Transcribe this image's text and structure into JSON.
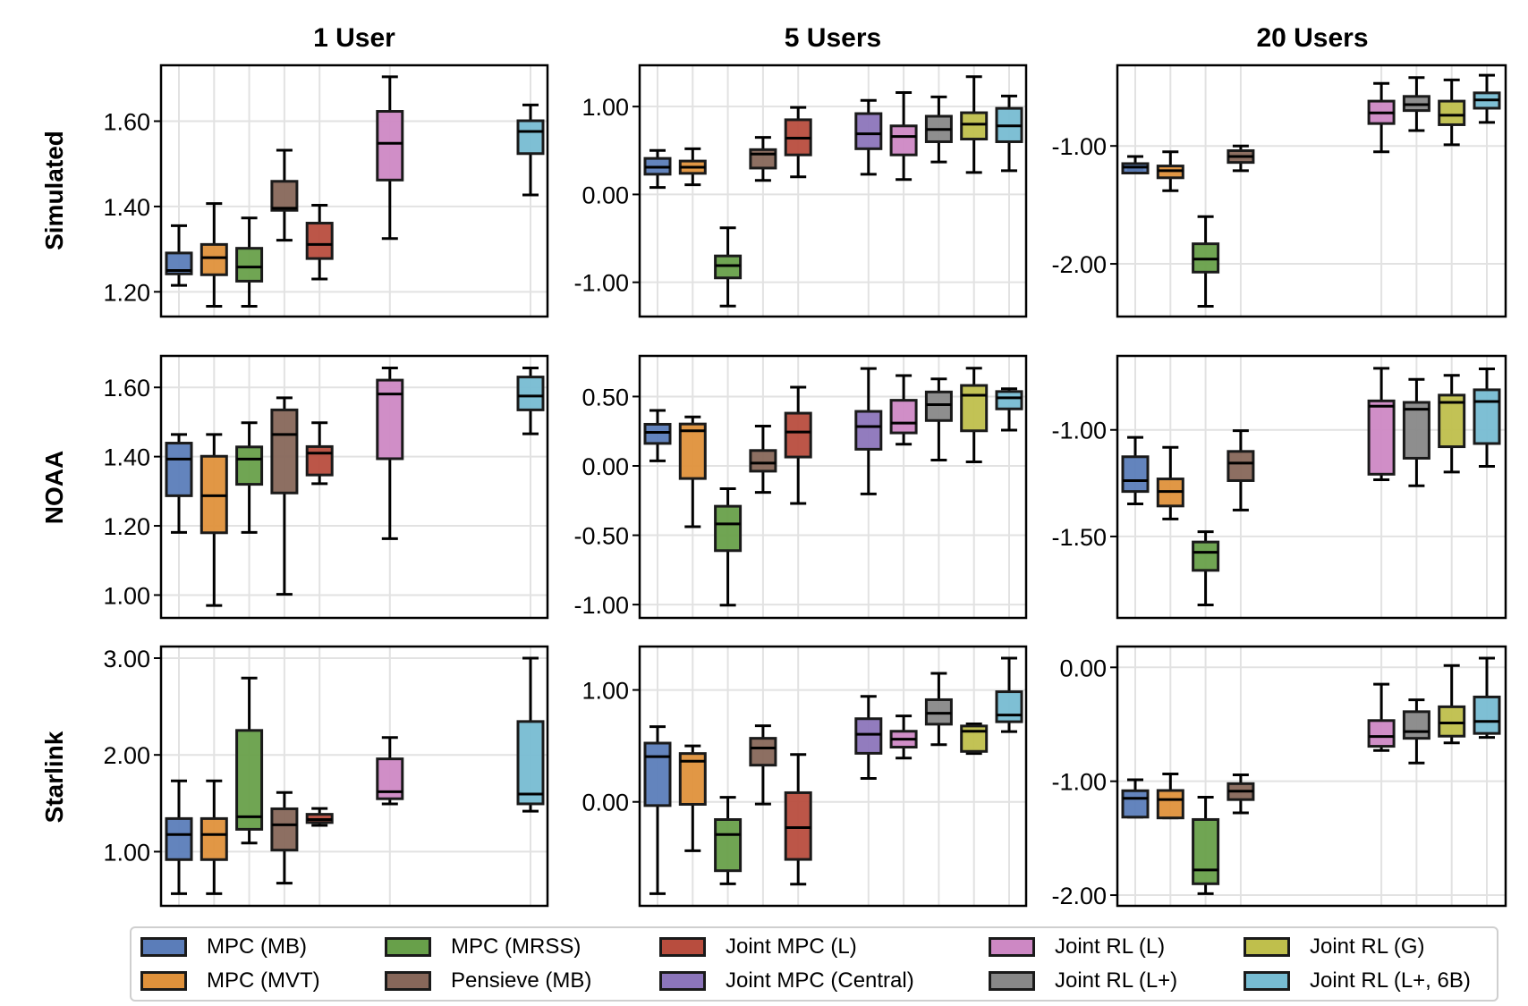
{
  "figure": {
    "column_titles": [
      "1 User",
      "5 Users",
      "20 Users"
    ],
    "row_titles": [
      "Simulated",
      "NOAA",
      "Starlink"
    ]
  },
  "legend": [
    {
      "label": "MPC (MB)",
      "color": "#5b7db9"
    },
    {
      "label": "MPC (MVT)",
      "color": "#df913b"
    },
    {
      "label": "MPC (MRSS)",
      "color": "#68a04a"
    },
    {
      "label": "Pensieve (MB)",
      "color": "#87675a"
    },
    {
      "label": "Joint MPC (L)",
      "color": "#b84d3e"
    },
    {
      "label": "Joint MPC (Central)",
      "color": "#8c75bb"
    },
    {
      "label": "Joint RL (L)",
      "color": "#cd88c4"
    },
    {
      "label": "Joint RL (L+)",
      "color": "#888888"
    },
    {
      "label": "Joint RL (G)",
      "color": "#bfbf4c"
    },
    {
      "label": "Joint RL (L+, 6B)",
      "color": "#77bcd2"
    }
  ],
  "chart_data": [
    {
      "type": "box",
      "row": "Simulated",
      "column": "1 User",
      "ylim": [
        1.142,
        1.731
      ],
      "yticks": [
        1.2,
        1.4,
        1.6
      ],
      "ytick_labels": [
        "1.20",
        "1.40",
        "1.60"
      ],
      "grid": true,
      "slots": 11,
      "boxes": [
        {
          "series": "MPC (MB)",
          "slot": 0,
          "whislo": 1.215,
          "q1": 1.242,
          "med": 1.25,
          "q3": 1.291,
          "whishi": 1.355
        },
        {
          "series": "MPC (MVT)",
          "slot": 1,
          "whislo": 1.166,
          "q1": 1.24,
          "med": 1.28,
          "q3": 1.311,
          "whishi": 1.407
        },
        {
          "series": "MPC (MRSS)",
          "slot": 2,
          "whislo": 1.166,
          "q1": 1.225,
          "med": 1.258,
          "q3": 1.302,
          "whishi": 1.373
        },
        {
          "series": "Pensieve (MB)",
          "slot": 3,
          "whislo": 1.321,
          "q1": 1.391,
          "med": 1.396,
          "q3": 1.459,
          "whishi": 1.532
        },
        {
          "series": "Joint MPC (L)",
          "slot": 4,
          "whislo": 1.23,
          "q1": 1.278,
          "med": 1.311,
          "q3": 1.361,
          "whishi": 1.403
        },
        {
          "series": "Joint RL (L)",
          "slot": 6,
          "whislo": 1.325,
          "q1": 1.462,
          "med": 1.548,
          "q3": 1.623,
          "whishi": 1.704
        },
        {
          "series": "Joint RL (L+, 6B)",
          "slot": 10,
          "whislo": 1.427,
          "q1": 1.524,
          "med": 1.576,
          "q3": 1.601,
          "whishi": 1.638
        }
      ]
    },
    {
      "type": "box",
      "row": "Simulated",
      "column": "5 Users",
      "ylim": [
        -1.39,
        1.47
      ],
      "yticks": [
        -1.0,
        0.0,
        1.0
      ],
      "ytick_labels": [
        "-1.00",
        "0.00",
        "1.00"
      ],
      "grid": true,
      "slots": 11,
      "boxes": [
        {
          "series": "MPC (MB)",
          "slot": 0,
          "whislo": 0.08,
          "q1": 0.23,
          "med": 0.31,
          "q3": 0.41,
          "whishi": 0.5
        },
        {
          "series": "MPC (MVT)",
          "slot": 1,
          "whislo": 0.11,
          "q1": 0.24,
          "med": 0.31,
          "q3": 0.38,
          "whishi": 0.52
        },
        {
          "series": "MPC (MRSS)",
          "slot": 2,
          "whislo": -1.27,
          "q1": -0.95,
          "med": -0.81,
          "q3": -0.7,
          "whishi": -0.38
        },
        {
          "series": "Pensieve (MB)",
          "slot": 3,
          "whislo": 0.16,
          "q1": 0.3,
          "med": 0.46,
          "q3": 0.51,
          "whishi": 0.65
        },
        {
          "series": "Joint MPC (L)",
          "slot": 4,
          "whislo": 0.2,
          "q1": 0.45,
          "med": 0.64,
          "q3": 0.85,
          "whishi": 0.99
        },
        {
          "series": "Joint MPC (Central)",
          "slot": 6,
          "whislo": 0.23,
          "q1": 0.52,
          "med": 0.69,
          "q3": 0.92,
          "whishi": 1.07
        },
        {
          "series": "Joint RL (L)",
          "slot": 7,
          "whislo": 0.17,
          "q1": 0.45,
          "med": 0.66,
          "q3": 0.78,
          "whishi": 1.16
        },
        {
          "series": "Joint RL (L+)",
          "slot": 8,
          "whislo": 0.37,
          "q1": 0.6,
          "med": 0.74,
          "q3": 0.89,
          "whishi": 1.11
        },
        {
          "series": "Joint RL (G)",
          "slot": 9,
          "whislo": 0.25,
          "q1": 0.63,
          "med": 0.8,
          "q3": 0.93,
          "whishi": 1.34
        },
        {
          "series": "Joint RL (L+, 6B)",
          "slot": 10,
          "whislo": 0.27,
          "q1": 0.6,
          "med": 0.78,
          "q3": 0.98,
          "whishi": 1.12
        }
      ]
    },
    {
      "type": "box",
      "row": "Simulated",
      "column": "20 Users",
      "ylim": [
        -2.447,
        -0.316
      ],
      "yticks": [
        -2.0,
        -1.0
      ],
      "ytick_labels": [
        "-2.00",
        "-1.00"
      ],
      "grid": true,
      "slots": 11,
      "boxes": [
        {
          "series": "MPC (MB)",
          "slot": 0,
          "whislo": -1.2,
          "q1": -1.23,
          "med": -1.18,
          "q3": -1.15,
          "whishi": -1.09
        },
        {
          "series": "MPC (MVT)",
          "slot": 1,
          "whislo": -1.38,
          "q1": -1.27,
          "med": -1.21,
          "q3": -1.17,
          "whishi": -1.05
        },
        {
          "series": "MPC (MRSS)",
          "slot": 2,
          "whislo": -2.36,
          "q1": -2.07,
          "med": -1.96,
          "q3": -1.83,
          "whishi": -1.6
        },
        {
          "series": "Pensieve (MB)",
          "slot": 3,
          "whislo": -1.21,
          "q1": -1.14,
          "med": -1.09,
          "q3": -1.04,
          "whishi": -1.0
        },
        {
          "series": "Joint RL (L)",
          "slot": 7,
          "whislo": -1.05,
          "q1": -0.81,
          "med": -0.72,
          "q3": -0.62,
          "whishi": -0.47
        },
        {
          "series": "Joint RL (L+)",
          "slot": 8,
          "whislo": -0.87,
          "q1": -0.7,
          "med": -0.65,
          "q3": -0.58,
          "whishi": -0.42
        },
        {
          "series": "Joint RL (G)",
          "slot": 9,
          "whislo": -0.99,
          "q1": -0.82,
          "med": -0.74,
          "q3": -0.62,
          "whishi": -0.44
        },
        {
          "series": "Joint RL (L+, 6B)",
          "slot": 10,
          "whislo": -0.8,
          "q1": -0.68,
          "med": -0.61,
          "q3": -0.55,
          "whishi": -0.4
        }
      ]
    },
    {
      "type": "box",
      "row": "NOAA",
      "column": "1 User",
      "ylim": [
        0.934,
        1.691
      ],
      "yticks": [
        1.0,
        1.2,
        1.4,
        1.6
      ],
      "ytick_labels": [
        "1.00",
        "1.20",
        "1.40",
        "1.60"
      ],
      "grid": true,
      "slots": 11,
      "boxes": [
        {
          "series": "MPC (MB)",
          "slot": 0,
          "whislo": 1.181,
          "q1": 1.287,
          "med": 1.393,
          "q3": 1.439,
          "whishi": 1.464
        },
        {
          "series": "MPC (MVT)",
          "slot": 1,
          "whislo": 0.97,
          "q1": 1.18,
          "med": 1.287,
          "q3": 1.401,
          "whishi": 1.464
        },
        {
          "series": "MPC (MRSS)",
          "slot": 2,
          "whislo": 1.181,
          "q1": 1.32,
          "med": 1.393,
          "q3": 1.428,
          "whishi": 1.498
        },
        {
          "series": "Pensieve (MB)",
          "slot": 3,
          "whislo": 1.002,
          "q1": 1.295,
          "med": 1.464,
          "q3": 1.535,
          "whishi": 1.57
        },
        {
          "series": "Joint MPC (L)",
          "slot": 4,
          "whislo": 1.322,
          "q1": 1.347,
          "med": 1.41,
          "q3": 1.429,
          "whishi": 1.498
        },
        {
          "series": "Joint RL (L)",
          "slot": 6,
          "whislo": 1.163,
          "q1": 1.394,
          "med": 1.581,
          "q3": 1.621,
          "whishi": 1.656
        },
        {
          "series": "Joint RL (L+, 6B)",
          "slot": 10,
          "whislo": 1.466,
          "q1": 1.535,
          "med": 1.575,
          "q3": 1.63,
          "whishi": 1.656
        }
      ]
    },
    {
      "type": "box",
      "row": "NOAA",
      "column": "5 Users",
      "ylim": [
        -1.096,
        0.793
      ],
      "yticks": [
        -1.0,
        -0.5,
        0.0,
        0.5
      ],
      "ytick_labels": [
        "-1.00",
        "-0.50",
        "0.00",
        "0.50"
      ],
      "grid": true,
      "slots": 11,
      "boxes": [
        {
          "series": "MPC (MB)",
          "slot": 0,
          "whislo": 0.036,
          "q1": 0.162,
          "med": 0.242,
          "q3": 0.3,
          "whishi": 0.4
        },
        {
          "series": "MPC (MVT)",
          "slot": 1,
          "whislo": -0.438,
          "q1": -0.091,
          "med": 0.253,
          "q3": 0.302,
          "whishi": 0.353
        },
        {
          "series": "MPC (MRSS)",
          "slot": 2,
          "whislo": -1.004,
          "q1": -0.611,
          "med": -0.418,
          "q3": -0.291,
          "whishi": -0.164
        },
        {
          "series": "Pensieve (MB)",
          "slot": 3,
          "whislo": -0.191,
          "q1": -0.038,
          "med": 0.02,
          "q3": 0.111,
          "whishi": 0.287
        },
        {
          "series": "Joint MPC (L)",
          "slot": 4,
          "whislo": -0.271,
          "q1": 0.064,
          "med": 0.244,
          "q3": 0.38,
          "whishi": 0.567
        },
        {
          "series": "Joint MPC (Central)",
          "slot": 6,
          "whislo": -0.202,
          "q1": 0.12,
          "med": 0.284,
          "q3": 0.393,
          "whishi": 0.702
        },
        {
          "series": "Joint RL (L)",
          "slot": 7,
          "whislo": 0.156,
          "q1": 0.238,
          "med": 0.309,
          "q3": 0.473,
          "whishi": 0.651
        },
        {
          "series": "Joint RL (L+)",
          "slot": 8,
          "whislo": 0.042,
          "q1": 0.327,
          "med": 0.442,
          "q3": 0.533,
          "whishi": 0.627
        },
        {
          "series": "Joint RL (G)",
          "slot": 9,
          "whislo": 0.029,
          "q1": 0.253,
          "med": 0.509,
          "q3": 0.58,
          "whishi": 0.704
        },
        {
          "series": "Joint RL (L+, 6B)",
          "slot": 10,
          "whislo": 0.258,
          "q1": 0.411,
          "med": 0.491,
          "q3": 0.536,
          "whishi": 0.556
        }
      ]
    },
    {
      "type": "box",
      "row": "NOAA",
      "column": "20 Users",
      "ylim": [
        -1.882,
        -0.653
      ],
      "yticks": [
        -1.5,
        -1.0
      ],
      "ytick_labels": [
        "-1.50",
        "-1.00"
      ],
      "grid": true,
      "slots": 11,
      "boxes": [
        {
          "series": "MPC (MB)",
          "slot": 0,
          "whislo": -1.347,
          "q1": -1.289,
          "med": -1.238,
          "q3": -1.126,
          "whishi": -1.035
        },
        {
          "series": "MPC (MVT)",
          "slot": 1,
          "whislo": -1.418,
          "q1": -1.357,
          "med": -1.289,
          "q3": -1.23,
          "whishi": -1.082
        },
        {
          "series": "MPC (MRSS)",
          "slot": 2,
          "whislo": -1.821,
          "q1": -1.659,
          "med": -1.574,
          "q3": -1.526,
          "whishi": -1.478
        },
        {
          "series": "Pensieve (MB)",
          "slot": 3,
          "whislo": -1.376,
          "q1": -1.238,
          "med": -1.156,
          "q3": -1.101,
          "whishi": -1.004
        },
        {
          "series": "Joint RL (L)",
          "slot": 7,
          "whislo": -1.234,
          "q1": -1.208,
          "med": -0.889,
          "q3": -0.864,
          "whishi": -0.711
        },
        {
          "series": "Joint RL (L+)",
          "slot": 8,
          "whislo": -1.262,
          "q1": -1.133,
          "med": -0.903,
          "q3": -0.871,
          "whishi": -0.763
        },
        {
          "series": "Joint RL (G)",
          "slot": 9,
          "whislo": -1.198,
          "q1": -1.079,
          "med": -0.871,
          "q3": -0.837,
          "whishi": -0.744
        },
        {
          "series": "Joint RL (L+, 6B)",
          "slot": 10,
          "whislo": -1.171,
          "q1": -1.064,
          "med": -0.867,
          "q3": -0.812,
          "whishi": -0.714
        }
      ]
    },
    {
      "type": "box",
      "row": "Starlink",
      "column": "1 User",
      "ylim": [
        0.44,
        3.12
      ],
      "yticks": [
        1.0,
        2.0,
        3.0
      ],
      "ytick_labels": [
        "1.00",
        "2.00",
        "3.00"
      ],
      "grid": true,
      "slots": 11,
      "boxes": [
        {
          "series": "MPC (MB)",
          "slot": 0,
          "whislo": 0.566,
          "q1": 0.918,
          "med": 1.177,
          "q3": 1.342,
          "whishi": 1.731
        },
        {
          "series": "MPC (MVT)",
          "slot": 1,
          "whislo": 0.566,
          "q1": 0.918,
          "med": 1.177,
          "q3": 1.342,
          "whishi": 1.731
        },
        {
          "series": "MPC (MRSS)",
          "slot": 2,
          "whislo": 1.089,
          "q1": 1.231,
          "med": 1.361,
          "q3": 2.253,
          "whishi": 2.794
        },
        {
          "series": "Pensieve (MB)",
          "slot": 3,
          "whislo": 0.674,
          "q1": 1.016,
          "med": 1.278,
          "q3": 1.443,
          "whishi": 1.611
        },
        {
          "series": "Joint MPC (L)",
          "slot": 4,
          "whislo": 1.272,
          "q1": 1.301,
          "med": 1.332,
          "q3": 1.386,
          "whishi": 1.446
        },
        {
          "series": "Joint RL (L)",
          "slot": 6,
          "whislo": 1.494,
          "q1": 1.547,
          "med": 1.62,
          "q3": 1.959,
          "whishi": 2.18
        },
        {
          "series": "Joint RL (L+, 6B)",
          "slot": 10,
          "whislo": 1.418,
          "q1": 1.494,
          "med": 1.595,
          "q3": 2.345,
          "whishi": 3.0
        }
      ]
    },
    {
      "type": "box",
      "row": "Starlink",
      "column": "5 Users",
      "ylim": [
        -0.929,
        1.388
      ],
      "yticks": [
        0.0,
        1.0
      ],
      "ytick_labels": [
        "0.00",
        "1.00"
      ],
      "grid": true,
      "slots": 11,
      "boxes": [
        {
          "series": "MPC (MB)",
          "slot": 0,
          "whislo": -0.82,
          "q1": -0.033,
          "med": 0.404,
          "q3": 0.525,
          "whishi": 0.672
        },
        {
          "series": "MPC (MVT)",
          "slot": 1,
          "whislo": -0.437,
          "q1": -0.022,
          "med": 0.363,
          "q3": 0.432,
          "whishi": 0.5
        },
        {
          "series": "MPC (MRSS)",
          "slot": 2,
          "whislo": -0.732,
          "q1": -0.615,
          "med": -0.292,
          "q3": -0.158,
          "whishi": 0.041
        },
        {
          "series": "Pensieve (MB)",
          "slot": 3,
          "whislo": -0.019,
          "q1": 0.328,
          "med": 0.481,
          "q3": 0.568,
          "whishi": 0.68
        },
        {
          "series": "Joint MPC (L)",
          "slot": 4,
          "whislo": -0.735,
          "q1": -0.514,
          "med": -0.23,
          "q3": 0.082,
          "whishi": 0.423
        },
        {
          "series": "Joint MPC (Central)",
          "slot": 6,
          "whislo": 0.21,
          "q1": 0.434,
          "med": 0.604,
          "q3": 0.743,
          "whishi": 0.943
        },
        {
          "series": "Joint RL (L)",
          "slot": 7,
          "whislo": 0.391,
          "q1": 0.489,
          "med": 0.56,
          "q3": 0.631,
          "whishi": 0.768
        },
        {
          "series": "Joint RL (L+)",
          "slot": 8,
          "whislo": 0.511,
          "q1": 0.694,
          "med": 0.792,
          "q3": 0.913,
          "whishi": 1.148
        },
        {
          "series": "Joint RL (G)",
          "slot": 9,
          "whislo": 0.432,
          "q1": 0.451,
          "med": 0.631,
          "q3": 0.678,
          "whishi": 0.697
        },
        {
          "series": "Joint RL (L+, 6B)",
          "slot": 10,
          "whislo": 0.628,
          "q1": 0.716,
          "med": 0.776,
          "q3": 0.984,
          "whishi": 1.284
        }
      ]
    },
    {
      "type": "box",
      "row": "Starlink",
      "column": "20 Users",
      "ylim": [
        -2.094,
        0.183
      ],
      "yticks": [
        -2.0,
        -1.0,
        0.0
      ],
      "ytick_labels": [
        "-2.00",
        "-1.00",
        "0.00"
      ],
      "grid": true,
      "slots": 11,
      "boxes": [
        {
          "series": "MPC (MB)",
          "slot": 0,
          "whislo": -1.315,
          "q1": -1.315,
          "med": -1.15,
          "q3": -1.083,
          "whishi": -0.987
        },
        {
          "series": "MPC (MVT)",
          "slot": 1,
          "whislo": -1.322,
          "q1": -1.322,
          "med": -1.161,
          "q3": -1.081,
          "whishi": -0.936
        },
        {
          "series": "MPC (MRSS)",
          "slot": 2,
          "whislo": -1.987,
          "q1": -1.9,
          "med": -1.779,
          "q3": -1.336,
          "whishi": -1.14
        },
        {
          "series": "Pensieve (MB)",
          "slot": 3,
          "whislo": -1.277,
          "q1": -1.161,
          "med": -1.087,
          "q3": -1.021,
          "whishi": -0.944
        },
        {
          "series": "Joint RL (L)",
          "slot": 7,
          "whislo": -0.73,
          "q1": -0.693,
          "med": -0.607,
          "q3": -0.467,
          "whishi": -0.148
        },
        {
          "series": "Joint RL (L+)",
          "slot": 8,
          "whislo": -0.84,
          "q1": -0.623,
          "med": -0.564,
          "q3": -0.389,
          "whishi": -0.285
        },
        {
          "series": "Joint RL (G)",
          "slot": 9,
          "whislo": -0.663,
          "q1": -0.604,
          "med": -0.488,
          "q3": -0.346,
          "whishi": 0.016
        },
        {
          "series": "Joint RL (L+, 6B)",
          "slot": 10,
          "whislo": -0.615,
          "q1": -0.58,
          "med": -0.475,
          "q3": -0.26,
          "whishi": 0.081
        }
      ]
    }
  ]
}
